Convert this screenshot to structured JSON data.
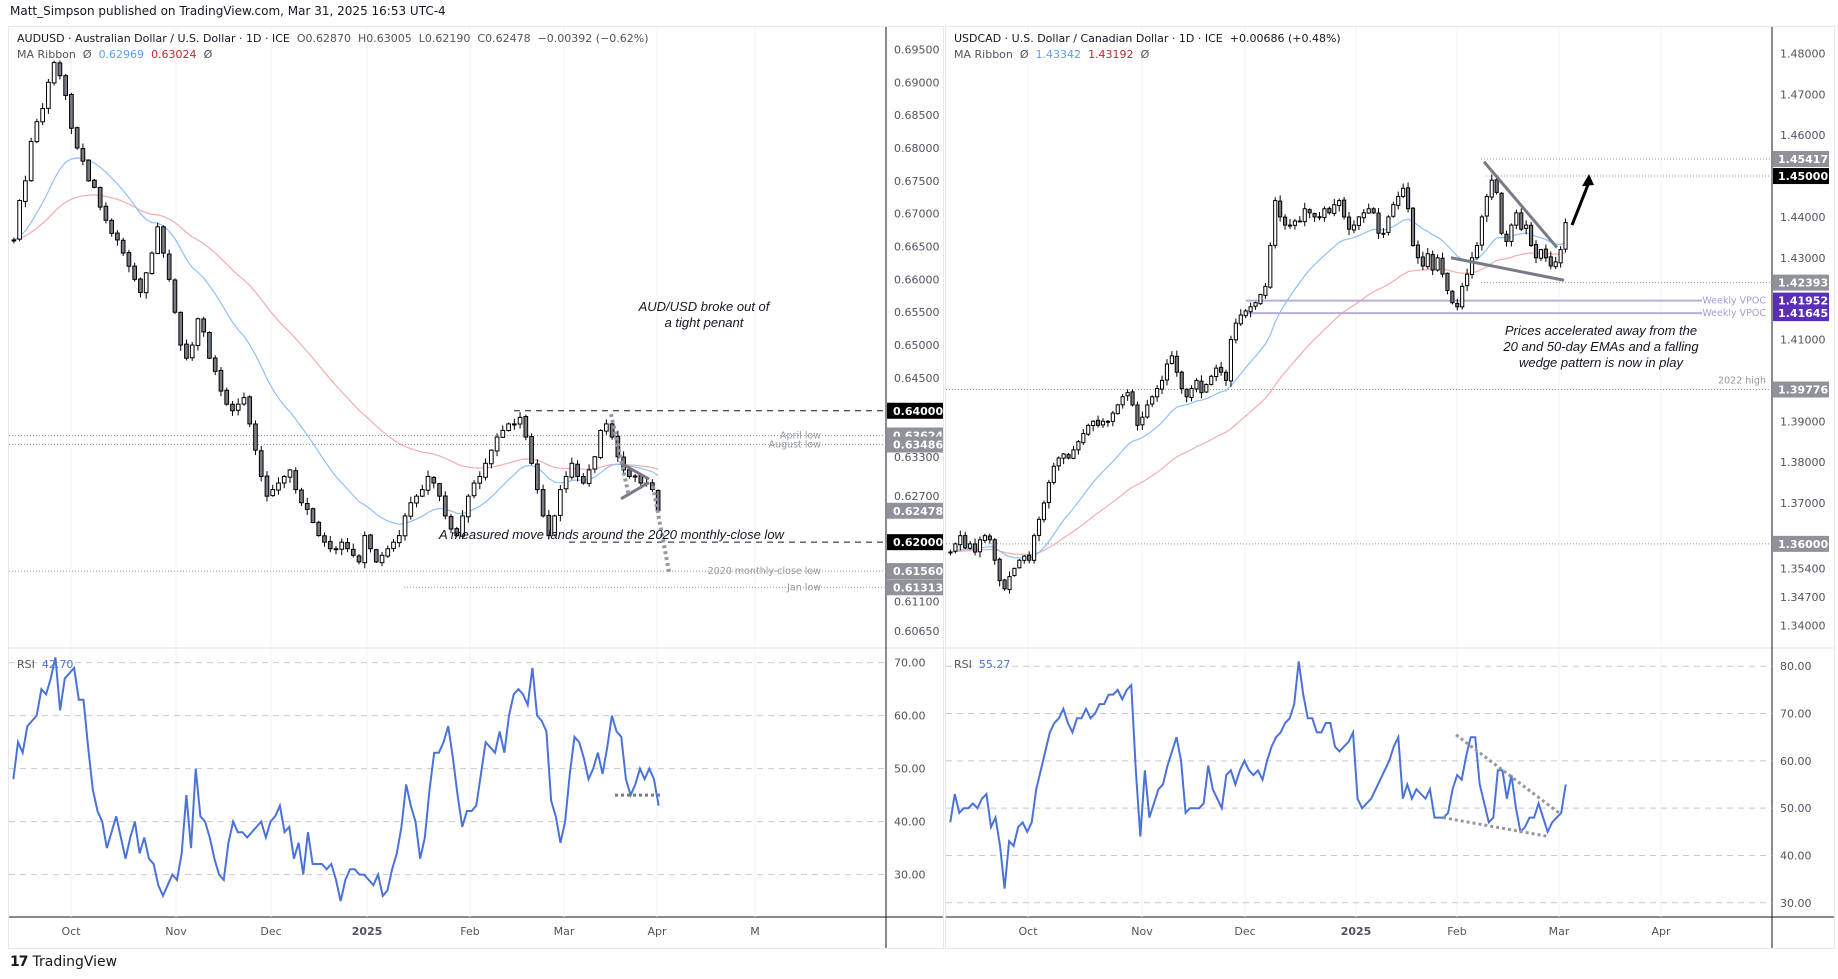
{
  "header": {
    "published": "Matt_Simpson published on TradingView.com, Mar 31, 2025 16:53 UTC-4"
  },
  "footer": {
    "brand": "TradingView"
  },
  "left": {
    "symbol_line": "AUDUSD · Australian Dollar / U.S. Dollar · 1D · ICE",
    "ohlc": {
      "open": "O0.62870",
      "high": "H0.63005",
      "low": "L0.62190",
      "close": "C0.62478",
      "change": "−0.00392 (−0.62%)"
    },
    "ma_ribbon": {
      "label": "MA Ribbon",
      "v1": "0.62969",
      "v2": "0.63024",
      "null_symbol": "Ø"
    },
    "rsi": {
      "label": "RSI",
      "value": "42.70"
    },
    "annotation_top": "AUD/USD broke out of\na tight penant",
    "annotation_bottom": "A measured move lands around the 2020 monthly-close low",
    "level_labels": [
      "April low",
      "August low",
      "2020 monthly-close low",
      "Jan low"
    ],
    "x_labels": [
      "Oct",
      "Nov",
      "Dec",
      "2025",
      "Feb",
      "Mar",
      "Apr",
      "M"
    ],
    "price_ticks": [
      "0.69500",
      "0.69000",
      "0.68500",
      "0.68000",
      "0.67500",
      "0.67000",
      "0.66500",
      "0.66000",
      "0.65500",
      "0.65000",
      "0.64500",
      "0.63300",
      "0.62700",
      "0.61100",
      "0.60650"
    ],
    "price_badges": [
      {
        "v": "0.64000",
        "style": "black"
      },
      {
        "v": "0.63624",
        "style": "grey"
      },
      {
        "v": "0.63486",
        "style": "grey"
      },
      {
        "v": "0.62478",
        "style": "grey"
      },
      {
        "v": "0.62000",
        "style": "black"
      },
      {
        "v": "0.61560",
        "style": "grey"
      },
      {
        "v": "0.61313",
        "style": "grey"
      }
    ],
    "rsi_ticks": [
      "70.00",
      "60.00",
      "50.00",
      "40.00",
      "30.00"
    ]
  },
  "right": {
    "symbol_line": "USDCAD · U.S. Dollar / Canadian Dollar · 1D · ICE",
    "change": "+0.00686 (+0.48%)",
    "ma_ribbon": {
      "label": "MA Ribbon",
      "v1": "1.43342",
      "v2": "1.43192",
      "null_symbol": "Ø"
    },
    "rsi": {
      "label": "RSI",
      "value": "55.27"
    },
    "annotation": "Prices accelerated away from the\n20 and 50-day EMAs and a falling\nwedge pattern is now in play",
    "level_labels": [
      "Weekly VPOC",
      "Weekly VPOC",
      "2022 high"
    ],
    "x_labels": [
      "Oct",
      "Nov",
      "Dec",
      "2025",
      "Feb",
      "Mar",
      "Apr"
    ],
    "price_ticks": [
      "1.48000",
      "1.47000",
      "1.46000",
      "1.44000",
      "1.43000",
      "1.41000",
      "1.39000",
      "1.38000",
      "1.37000",
      "1.35400",
      "1.34700",
      "1.34000"
    ],
    "price_badges": [
      {
        "v": "1.45417",
        "style": "grey"
      },
      {
        "v": "1.45000",
        "style": "black"
      },
      {
        "v": "1.42393",
        "style": "grey"
      },
      {
        "v": "1.41952",
        "style": "purple"
      },
      {
        "v": "1.41645",
        "style": "purple"
      },
      {
        "v": "1.39776",
        "style": "grey"
      },
      {
        "v": "1.36000",
        "style": "grey"
      }
    ],
    "rsi_ticks": [
      "80.00",
      "70.00",
      "60.00",
      "50.00",
      "40.00",
      "30.00"
    ]
  },
  "colors": {
    "ema_fast": "#5b9cf6",
    "ema_slow": "#e57373",
    "rsi_line": "#4a72d9",
    "vpoc": "#5b2fb5",
    "badge_grey": "#8f929b",
    "badge_black": "#000000"
  },
  "chart_data": [
    {
      "type": "candlestick",
      "title": "AUDUSD · Australian Dollar / U.S. Dollar · 1D · ICE",
      "ylim": [
        0.6045,
        0.6975
      ],
      "x_range": [
        "2024-09-10",
        "2025-05-05"
      ],
      "close_path": [
        0.666,
        0.672,
        0.675,
        0.681,
        0.684,
        0.686,
        0.69,
        0.693,
        0.691,
        0.688,
        0.683,
        0.68,
        0.678,
        0.675,
        0.674,
        0.671,
        0.669,
        0.667,
        0.666,
        0.664,
        0.662,
        0.66,
        0.658,
        0.661,
        0.664,
        0.668,
        0.664,
        0.66,
        0.655,
        0.65,
        0.648,
        0.65,
        0.654,
        0.652,
        0.648,
        0.646,
        0.643,
        0.641,
        0.64,
        0.641,
        0.642,
        0.638,
        0.634,
        0.63,
        0.627,
        0.628,
        0.629,
        0.63,
        0.631,
        0.628,
        0.626,
        0.625,
        0.623,
        0.621,
        0.62,
        0.619,
        0.619,
        0.62,
        0.619,
        0.618,
        0.617,
        0.621,
        0.619,
        0.617,
        0.618,
        0.619,
        0.62,
        0.621,
        0.624,
        0.626,
        0.627,
        0.628,
        0.63,
        0.629,
        0.627,
        0.624,
        0.622,
        0.621,
        0.624,
        0.627,
        0.629,
        0.63,
        0.632,
        0.634,
        0.636,
        0.637,
        0.638,
        0.638,
        0.639,
        0.636,
        0.632,
        0.628,
        0.624,
        0.621,
        0.624,
        0.628,
        0.63,
        0.632,
        0.63,
        0.629,
        0.631,
        0.633,
        0.637,
        0.638,
        0.636,
        0.633,
        0.631,
        0.63,
        0.63,
        0.629,
        0.629,
        0.628,
        0.6248
      ],
      "ema_fast_last": 0.62969,
      "ema_slow_last": 0.63024,
      "levels": [
        {
          "label": "0.64000",
          "y": 0.64,
          "style": "dashed"
        },
        {
          "label": "April low",
          "y": 0.63624,
          "style": "dotted"
        },
        {
          "label": "August low",
          "y": 0.63486,
          "style": "dotted"
        },
        {
          "label": "0.62000",
          "y": 0.62,
          "style": "dashed"
        },
        {
          "label": "2020 monthly-close low",
          "y": 0.6156,
          "style": "dotted"
        },
        {
          "label": "Jan low",
          "y": 0.61313,
          "style": "dotted"
        }
      ],
      "annotations": [
        "AUD/USD broke out of a tight penant",
        "A measured move lands around the 2020 monthly-close low"
      ]
    },
    {
      "type": "line",
      "title": "RSI (AUDUSD)",
      "ylim": [
        22,
        72
      ],
      "ticks": [
        70,
        60,
        50,
        40,
        30
      ],
      "last": 42.7,
      "values": [
        48,
        55,
        53,
        58,
        59,
        60,
        65,
        64,
        67,
        71,
        61,
        67,
        68,
        69,
        63,
        63,
        54,
        46,
        42,
        40,
        35,
        38,
        41,
        37,
        33,
        37,
        40,
        34,
        37,
        33,
        32,
        28,
        26,
        28,
        30,
        29,
        34,
        45,
        35,
        50,
        41,
        40,
        37,
        33,
        30,
        29,
        36,
        40,
        38,
        38,
        37,
        38,
        39,
        40,
        37,
        40,
        41,
        43,
        38,
        39,
        33,
        36,
        30,
        38,
        32,
        32,
        32,
        31,
        32,
        29,
        25,
        29,
        31,
        31,
        30,
        30,
        29,
        28,
        30,
        26,
        27,
        31,
        34,
        39,
        47,
        43,
        40,
        33,
        37,
        46,
        53,
        53,
        55,
        58,
        52,
        45,
        39,
        42,
        42,
        43,
        49,
        55,
        54,
        53,
        57,
        53,
        60,
        64,
        65,
        64,
        62,
        69,
        60,
        59,
        57,
        44,
        41,
        36,
        40,
        49,
        56,
        55,
        52,
        48,
        50,
        53,
        49,
        54,
        60,
        57,
        56,
        48,
        45,
        47,
        50,
        48,
        50,
        48,
        43
      ]
    },
    {
      "type": "candlestick",
      "title": "USDCAD · U.S. Dollar / Canadian Dollar · 1D · ICE",
      "ylim": [
        1.3355,
        1.485
      ],
      "x_range": [
        "2024-09-10",
        "2025-04-30"
      ],
      "close_path": [
        1.358,
        1.36,
        1.362,
        1.359,
        1.36,
        1.358,
        1.361,
        1.362,
        1.361,
        1.356,
        1.351,
        1.349,
        1.352,
        1.354,
        1.356,
        1.357,
        1.356,
        1.362,
        1.366,
        1.37,
        1.375,
        1.379,
        1.381,
        1.382,
        1.381,
        1.383,
        1.385,
        1.387,
        1.389,
        1.39,
        1.389,
        1.39,
        1.39,
        1.392,
        1.394,
        1.396,
        1.397,
        1.394,
        1.389,
        1.391,
        1.394,
        1.396,
        1.398,
        1.4,
        1.404,
        1.406,
        1.402,
        1.398,
        1.396,
        1.398,
        1.4,
        1.397,
        1.399,
        1.401,
        1.403,
        1.402,
        1.4,
        1.41,
        1.414,
        1.416,
        1.417,
        1.418,
        1.419,
        1.421,
        1.423,
        1.433,
        1.444,
        1.44,
        1.438,
        1.438,
        1.439,
        1.439,
        1.442,
        1.441,
        1.44,
        1.44,
        1.442,
        1.441,
        1.443,
        1.444,
        1.44,
        1.437,
        1.438,
        1.44,
        1.441,
        1.442,
        1.441,
        1.436,
        1.436,
        1.44,
        1.443,
        1.445,
        1.447,
        1.442,
        1.433,
        1.43,
        1.428,
        1.431,
        1.427,
        1.43,
        1.426,
        1.422,
        1.419,
        1.418,
        1.423,
        1.426,
        1.43,
        1.433,
        1.44,
        1.445,
        1.449,
        1.446,
        1.436,
        1.434,
        1.438,
        1.441,
        1.437,
        1.438,
        1.433,
        1.43,
        1.432,
        1.43,
        1.428,
        1.429,
        1.432,
        1.4386
      ],
      "ema_fast_last": 1.43342,
      "ema_slow_last": 1.43192,
      "levels": [
        {
          "label": "1.45417",
          "y": 1.45417,
          "style": "dotted"
        },
        {
          "label": "1.45000",
          "y": 1.45,
          "style": "dotted"
        },
        {
          "label": "1.42393",
          "y": 1.42393,
          "style": "dotted"
        },
        {
          "label": "Weekly VPOC",
          "y": 1.41952,
          "style": "solid-purple"
        },
        {
          "label": "Weekly VPOC",
          "y": 1.41645,
          "style": "solid-purple"
        },
        {
          "label": "2022 high",
          "y": 1.39776,
          "style": "dotted"
        },
        {
          "label": "1.36000",
          "y": 1.36,
          "style": "dotted"
        }
      ],
      "annotations": [
        "Prices accelerated away from the 20 and 50-day EMAs and a falling wedge pattern is now in play"
      ]
    },
    {
      "type": "line",
      "title": "RSI (USDCAD)",
      "ylim": [
        27,
        83
      ],
      "ticks": [
        80,
        70,
        60,
        50,
        40,
        30
      ],
      "last": 55.27,
      "values": [
        47,
        53,
        49,
        50,
        50,
        51,
        50,
        52,
        53,
        46,
        48,
        42,
        33,
        43,
        42,
        46,
        47,
        45,
        47,
        54,
        58,
        62,
        66,
        68,
        69,
        71,
        68,
        66,
        69,
        69,
        71,
        69,
        70,
        72,
        72,
        74,
        74,
        75,
        73,
        75,
        76,
        58,
        44,
        58,
        48,
        51,
        54,
        55,
        59,
        62,
        65,
        60,
        49,
        50,
        50,
        50,
        51,
        59,
        54,
        52,
        50,
        57,
        58,
        55,
        58,
        60,
        58,
        57,
        58,
        56,
        60,
        63,
        65,
        66,
        68,
        69,
        72,
        81,
        74,
        69,
        69,
        66,
        66,
        68,
        68,
        63,
        62,
        63,
        64,
        66,
        52,
        50,
        51,
        52,
        54,
        56,
        58,
        60,
        63,
        65,
        52,
        55,
        52,
        54,
        53,
        52,
        54,
        48,
        48,
        48,
        49,
        54,
        57,
        56,
        61,
        65,
        65,
        55,
        51,
        47,
        48,
        58,
        58,
        52,
        57,
        50,
        45,
        46,
        48,
        48,
        51,
        48,
        45,
        47,
        48,
        49,
        55
      ]
    }
  ]
}
